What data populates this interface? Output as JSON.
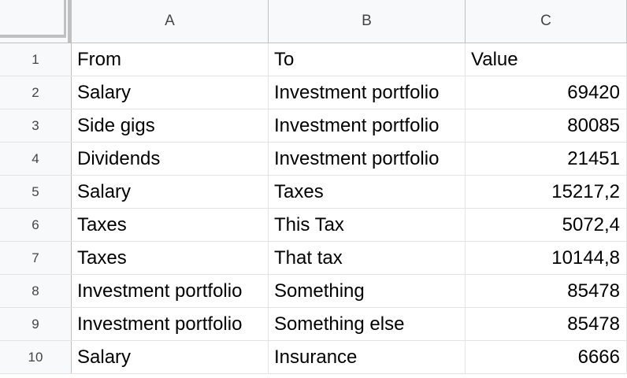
{
  "sheet": {
    "columns": [
      "A",
      "B",
      "C"
    ],
    "rows": [
      {
        "num": "1",
        "a": "From",
        "b": "To",
        "c": "Value"
      },
      {
        "num": "2",
        "a": "Salary",
        "b": "Investment portfolio",
        "c": "69420"
      },
      {
        "num": "3",
        "a": "Side gigs",
        "b": "Investment portfolio",
        "c": "80085"
      },
      {
        "num": "4",
        "a": "Dividends",
        "b": "Investment portfolio",
        "c": "21451"
      },
      {
        "num": "5",
        "a": "Salary",
        "b": "Taxes",
        "c": "15217,2"
      },
      {
        "num": "6",
        "a": "Taxes",
        "b": "This Tax",
        "c": "5072,4"
      },
      {
        "num": "7",
        "a": "Taxes",
        "b": "That tax",
        "c": "10144,8"
      },
      {
        "num": "8",
        "a": "Investment portfolio",
        "b": "Something",
        "c": "85478"
      },
      {
        "num": "9",
        "a": "Investment portfolio",
        "b": "Something else",
        "c": "85478"
      },
      {
        "num": "10",
        "a": "Salary",
        "b": "Insurance",
        "c": "6666"
      }
    ]
  }
}
